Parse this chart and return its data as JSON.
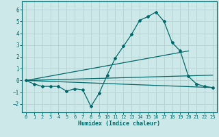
{
  "title": "",
  "xlabel": "Humidex (Indice chaleur)",
  "ylabel": "",
  "bg_color": "#cce8e8",
  "grid_color": "#b8d4d4",
  "line_color": "#006868",
  "xlim": [
    -0.5,
    23.5
  ],
  "ylim": [
    -2.7,
    6.7
  ],
  "xticks": [
    0,
    1,
    2,
    3,
    4,
    5,
    6,
    7,
    8,
    9,
    10,
    11,
    12,
    13,
    14,
    15,
    16,
    17,
    18,
    19,
    20,
    21,
    22,
    23
  ],
  "yticks": [
    -2,
    -1,
    0,
    1,
    2,
    3,
    4,
    5,
    6
  ],
  "series1_x": [
    0,
    1,
    2,
    3,
    4,
    5,
    6,
    7,
    8,
    9,
    10,
    11,
    12,
    13,
    14,
    15,
    16,
    17,
    18,
    19,
    20,
    21,
    22,
    23
  ],
  "series1_y": [
    0.0,
    -0.3,
    -0.5,
    -0.5,
    -0.5,
    -0.9,
    -0.7,
    -0.8,
    -2.2,
    -1.1,
    0.45,
    1.9,
    2.9,
    3.9,
    5.1,
    5.4,
    5.8,
    5.0,
    3.2,
    2.5,
    0.35,
    -0.3,
    -0.5,
    -0.6
  ],
  "series2_x": [
    0,
    23
  ],
  "series2_y": [
    0.0,
    -0.6
  ],
  "series3_x": [
    0,
    20
  ],
  "series3_y": [
    0.0,
    2.5
  ],
  "series4_x": [
    0,
    23
  ],
  "series4_y": [
    0.0,
    0.45
  ]
}
